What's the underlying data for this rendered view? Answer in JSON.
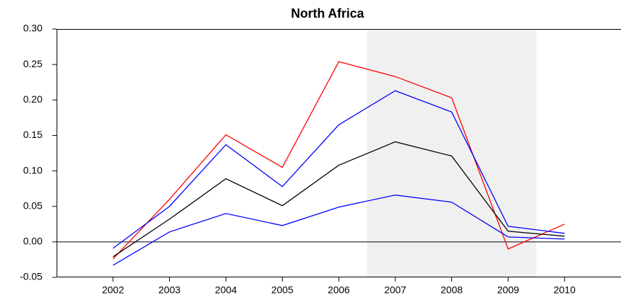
{
  "chart_data": {
    "type": "line",
    "title": "North Africa",
    "x": [
      2002,
      2003,
      2004,
      2005,
      2006,
      2007,
      2008,
      2009,
      2010
    ],
    "series": [
      {
        "color": "#ff0000",
        "values": [
          -0.024,
          0.06,
          0.151,
          0.105,
          0.254,
          0.233,
          0.203,
          -0.01,
          0.025
        ]
      },
      {
        "color": "#0000ff",
        "values": [
          -0.009,
          0.05,
          0.137,
          0.078,
          0.165,
          0.213,
          0.183,
          0.022,
          0.012
        ]
      },
      {
        "color": "#000000",
        "values": [
          -0.021,
          0.032,
          0.089,
          0.051,
          0.108,
          0.141,
          0.121,
          0.015,
          0.008
        ]
      },
      {
        "color": "#0000ff",
        "values": [
          -0.033,
          0.014,
          0.04,
          0.023,
          0.049,
          0.066,
          0.056,
          0.007,
          0.004
        ]
      }
    ],
    "xlim": [
      2001,
      2011
    ],
    "xticks": [
      2002,
      2003,
      2004,
      2005,
      2006,
      2007,
      2008,
      2009,
      2010
    ],
    "ylim": [
      -0.05,
      0.3
    ],
    "yticks": [
      {
        "value": -0.05,
        "label": "-0.05"
      },
      {
        "value": 0,
        "label": "0.00"
      },
      {
        "value": 0.05,
        "label": "0.05"
      },
      {
        "value": 0.1,
        "label": "0.10"
      },
      {
        "value": 0.15,
        "label": "0.15"
      },
      {
        "value": 0.2,
        "label": "0.20"
      },
      {
        "value": 0.25,
        "label": "0.25"
      },
      {
        "value": 0.3,
        "label": "0.30"
      }
    ],
    "hline": 0,
    "shade": {
      "x": [
        2006.5,
        2009.5
      ],
      "color": "#f0f0f0"
    }
  }
}
